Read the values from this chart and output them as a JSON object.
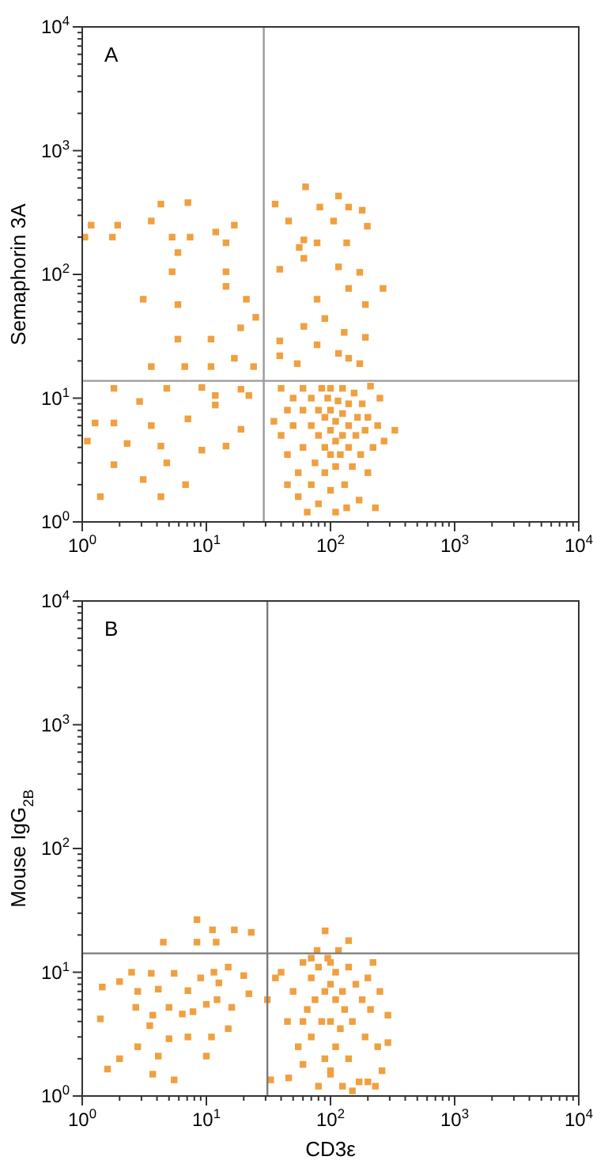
{
  "chart_data": [
    {
      "type": "scatter",
      "annotations": [
        "A"
      ],
      "ylabel": "Semaphorin 3A",
      "log": "xy",
      "marker": "square",
      "xlim": [
        1,
        10000
      ],
      "ylim": [
        1,
        10000
      ],
      "xticks": [
        {
          "value": 1,
          "label": "10$^{0}$"
        },
        {
          "value": 10,
          "label": "10$^{1}$"
        },
        {
          "value": 100,
          "label": "10$^{2}$"
        },
        {
          "value": 1000,
          "label": "10$^{3}$"
        },
        {
          "value": 10000,
          "label": "10$^{4}$"
        }
      ],
      "yticks": [
        {
          "value": 1,
          "label": "10$^{0}$"
        },
        {
          "value": 10,
          "label": "10$^{1}$"
        },
        {
          "value": 100,
          "label": "10$^{2}$"
        },
        {
          "value": 1000,
          "label": "10$^{3}$"
        },
        {
          "value": 10000,
          "label": "10$^{4}$"
        }
      ],
      "ref_lines": [
        {
          "axis": "x",
          "value": 29,
          "color": "#9a9a9a"
        },
        {
          "axis": "y",
          "value": 13.8,
          "color": "#9a9a9a"
        }
      ],
      "series": [
        {
          "color": "#f0a040",
          "x": [
            1.05,
            1.18,
            1.75,
            1.93,
            3.6,
            4.3,
            7.1,
            5.3,
            5.9,
            7.4,
            11.9,
            14.4,
            16.8,
            14.4,
            5.3,
            14.4,
            3.1,
            5.9,
            21,
            25,
            18.9,
            5.9,
            10.9,
            3.6,
            6.7,
            10.9,
            16.8,
            24,
            1.8,
            2.9,
            4.8,
            9.2,
            11.8,
            19,
            22,
            1.27,
            1.8,
            2.3,
            1.8,
            1.1,
            3.6,
            4.3,
            7.1,
            9.2,
            11.8,
            14.4,
            19,
            1.4,
            3.1,
            4.3,
            6.8,
            4.8,
            63,
            35.8,
            46,
            61,
            82,
            116,
            140,
            180,
            106,
            198,
            78,
            135,
            56,
            39,
            61,
            116,
            172,
            265,
            78,
            140,
            191,
            90,
            129,
            61,
            39,
            78,
            191,
            116,
            54,
            140,
            39,
            172,
            40,
            45,
            40,
            45,
            50,
            50,
            55,
            55,
            60,
            60,
            60,
            65,
            70,
            70,
            70,
            75,
            80,
            80,
            80,
            85,
            90,
            90,
            90,
            95,
            100,
            100,
            100,
            100,
            100,
            110,
            110,
            110,
            110,
            115,
            120,
            125,
            125,
            125,
            130,
            135,
            140,
            140,
            140,
            150,
            155,
            160,
            165,
            170,
            175,
            180,
            190,
            200,
            200,
            210,
            220,
            230,
            240,
            250,
            270,
            330,
            35,
            45
          ],
          "values": [
            200,
            250,
            200,
            250,
            270,
            370,
            380,
            200,
            150,
            200,
            220,
            180,
            250,
            105,
            105,
            80,
            63,
            57,
            63,
            45,
            37,
            30,
            30,
            18,
            18,
            18,
            21,
            18,
            12,
            9.4,
            12,
            12.2,
            10.5,
            11.8,
            10.5,
            6.3,
            6.3,
            4.3,
            2.9,
            4.5,
            6,
            4.1,
            6.8,
            3.8,
            8.8,
            4.1,
            5.6,
            1.6,
            2.2,
            1.6,
            2,
            3,
            510,
            370,
            270,
            190,
            350,
            430,
            350,
            330,
            270,
            245,
            180,
            180,
            165,
            110,
            135,
            115,
            104,
            77,
            63,
            77,
            57,
            44,
            34,
            38,
            29,
            27,
            31,
            23,
            19,
            21,
            22,
            19,
            12,
            8,
            5,
            3.5,
            6,
            10,
            2.5,
            1.6,
            4,
            8,
            12,
            1.2,
            2,
            6,
            10,
            3,
            1.4,
            5,
            8,
            12,
            2.5,
            4,
            7,
            10,
            1.8,
            3.5,
            5.5,
            8,
            12,
            1.2,
            2.8,
            4.5,
            6.5,
            9.5,
            3.5,
            5,
            7.5,
            12,
            2,
            1.3,
            4,
            6,
            9,
            2.8,
            11,
            5,
            7,
            1.5,
            3.5,
            9,
            5.5,
            2.5,
            7,
            12.5,
            4,
            1.3,
            6,
            10,
            4.5,
            5.5,
            6.5,
            2
          ]
        }
      ]
    },
    {
      "type": "scatter",
      "annotations": [
        "B"
      ],
      "ylabel": "Mouse IgG$_{2B}$",
      "xlabel": "CD3ε",
      "log": "xy",
      "marker": "square",
      "xlim": [
        1,
        10000
      ],
      "ylim": [
        1,
        10000
      ],
      "xticks": [
        {
          "value": 1,
          "label": "10$^{0}$"
        },
        {
          "value": 10,
          "label": "10$^{1}$"
        },
        {
          "value": 100,
          "label": "10$^{2}$"
        },
        {
          "value": 1000,
          "label": "10$^{3}$"
        },
        {
          "value": 10000,
          "label": "10$^{4}$"
        }
      ],
      "yticks": [
        {
          "value": 1,
          "label": "10$^{0}$"
        },
        {
          "value": 10,
          "label": "10$^{1}$"
        },
        {
          "value": 100,
          "label": "10$^{2}$"
        },
        {
          "value": 1000,
          "label": "10$^{3}$"
        },
        {
          "value": 10000,
          "label": "10$^{4}$"
        }
      ],
      "ref_lines": [
        {
          "axis": "x",
          "value": 31,
          "color": "#7a7a7a"
        },
        {
          "axis": "y",
          "value": 14.2,
          "color": "#7a7a7a"
        }
      ],
      "series": [
        {
          "color": "#f0a040",
          "x": [
            8.4,
            11.2,
            16.8,
            23,
            4.5,
            8.4,
            12,
            1.45,
            2,
            2.5,
            3.6,
            2.8,
            4.1,
            5.5,
            7.1,
            9,
            11.5,
            15,
            20,
            22,
            16,
            12.2,
            10,
            7.8,
            5,
            3.7,
            2.7,
            1.4,
            3.5,
            7.1,
            11,
            15,
            5,
            2.8,
            2,
            4.1,
            10,
            1.6,
            3.7,
            5.5,
            6.4,
            12.6,
            90.6,
            140,
            116,
            78,
            31,
            36,
            33,
            46,
            290,
            290,
            40,
            45,
            50,
            55,
            60,
            60,
            65,
            70,
            70,
            75,
            80,
            80,
            85,
            90,
            90,
            95,
            100,
            100,
            100,
            100,
            110,
            110,
            110,
            120,
            125,
            125,
            130,
            140,
            140,
            150,
            160,
            170,
            180,
            190,
            200,
            210,
            220,
            240,
            250,
            60,
            70,
            100,
            150,
            200,
            230,
            260
          ],
          "values": [
            26.6,
            22,
            22,
            21,
            17.5,
            17.5,
            17.5,
            7.6,
            8.4,
            10,
            9.8,
            7,
            7.3,
            9.8,
            7.1,
            9,
            10,
            11,
            9.4,
            6.7,
            5.2,
            6,
            5.5,
            4.8,
            5.2,
            4.5,
            5.2,
            4.2,
            3.7,
            3,
            3,
            3.5,
            2.9,
            2.5,
            2,
            2.1,
            2.1,
            1.65,
            1.5,
            1.35,
            4.6,
            8.2,
            21.6,
            18,
            15,
            15,
            6,
            9,
            1.35,
            1.4,
            4.5,
            2.7,
            10,
            4,
            7,
            2.5,
            1.8,
            12,
            5,
            3,
            9,
            6,
            1.2,
            11,
            4,
            7,
            2,
            13,
            1.5,
            4,
            8,
            12,
            2.5,
            6,
            10,
            3.5,
            1.2,
            7,
            5,
            2,
            11,
            4,
            8,
            1.3,
            6,
            3,
            9,
            5,
            12,
            2.5,
            7,
            4,
            13,
            1.6,
            1.1,
            1.3,
            1.2,
            1.6
          ]
        }
      ]
    }
  ]
}
